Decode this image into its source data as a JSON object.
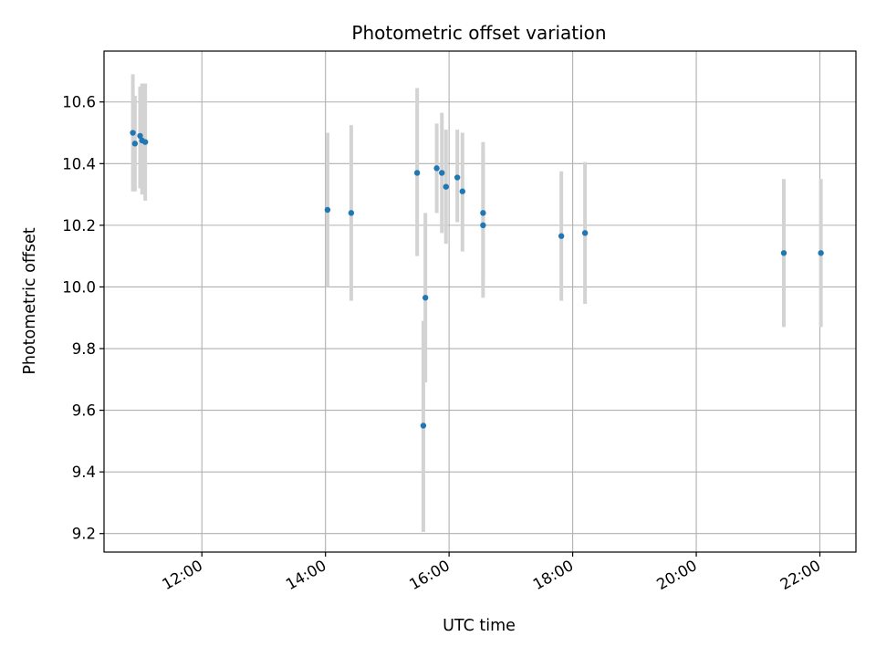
{
  "chart_data": {
    "type": "scatter",
    "title": "Photometric offset variation",
    "xlabel": "UTC time",
    "ylabel": "Photometric offset",
    "x_unit": "time (HH:MM, UTC)",
    "xlim": [
      "10:25",
      "22:35"
    ],
    "ylim": [
      9.14,
      10.765
    ],
    "xticks": [
      "12:00",
      "14:00",
      "16:00",
      "18:00",
      "20:00",
      "22:00"
    ],
    "yticks": [
      9.2,
      9.4,
      9.6,
      9.8,
      10.0,
      10.2,
      10.4,
      10.6
    ],
    "grid": true,
    "marker_color": "#1f77b4",
    "errorbar_color": "#d3d3d3",
    "series": [
      {
        "points": [
          {
            "x": "10:53",
            "y": 10.5,
            "ylow": 10.31,
            "yhigh": 10.69
          },
          {
            "x": "10:55",
            "y": 10.465,
            "ylow": 10.31,
            "yhigh": 10.62
          },
          {
            "x": "11:00",
            "y": 10.49,
            "ylow": 10.32,
            "yhigh": 10.65
          },
          {
            "x": "11:02",
            "y": 10.475,
            "ylow": 10.3,
            "yhigh": 10.66
          },
          {
            "x": "11:05",
            "y": 10.47,
            "ylow": 10.28,
            "yhigh": 10.66
          },
          {
            "x": "14:02",
            "y": 10.25,
            "ylow": 10.0,
            "yhigh": 10.5
          },
          {
            "x": "14:25",
            "y": 10.24,
            "ylow": 9.955,
            "yhigh": 10.525
          },
          {
            "x": "15:29",
            "y": 10.37,
            "ylow": 10.1,
            "yhigh": 10.645
          },
          {
            "x": "15:35",
            "y": 9.55,
            "ylow": 9.205,
            "yhigh": 9.89
          },
          {
            "x": "15:37",
            "y": 9.965,
            "ylow": 9.69,
            "yhigh": 10.24
          },
          {
            "x": "15:48",
            "y": 10.385,
            "ylow": 10.24,
            "yhigh": 10.53
          },
          {
            "x": "15:53",
            "y": 10.37,
            "ylow": 10.175,
            "yhigh": 10.565
          },
          {
            "x": "15:57",
            "y": 10.325,
            "ylow": 10.14,
            "yhigh": 10.51
          },
          {
            "x": "16:08",
            "y": 10.355,
            "ylow": 10.21,
            "yhigh": 10.51
          },
          {
            "x": "16:13",
            "y": 10.31,
            "ylow": 10.115,
            "yhigh": 10.5
          },
          {
            "x": "16:33",
            "y": 10.24,
            "ylow": 10.015,
            "yhigh": 10.47
          },
          {
            "x": "16:33",
            "y": 10.2,
            "ylow": 9.965,
            "yhigh": 10.44
          },
          {
            "x": "17:49",
            "y": 10.165,
            "ylow": 9.955,
            "yhigh": 10.375
          },
          {
            "x": "18:12",
            "y": 10.175,
            "ylow": 9.945,
            "yhigh": 10.405
          },
          {
            "x": "21:25",
            "y": 10.11,
            "ylow": 9.87,
            "yhigh": 10.35
          },
          {
            "x": "22:01",
            "y": 10.11,
            "ylow": 9.87,
            "yhigh": 10.35
          }
        ]
      }
    ]
  }
}
